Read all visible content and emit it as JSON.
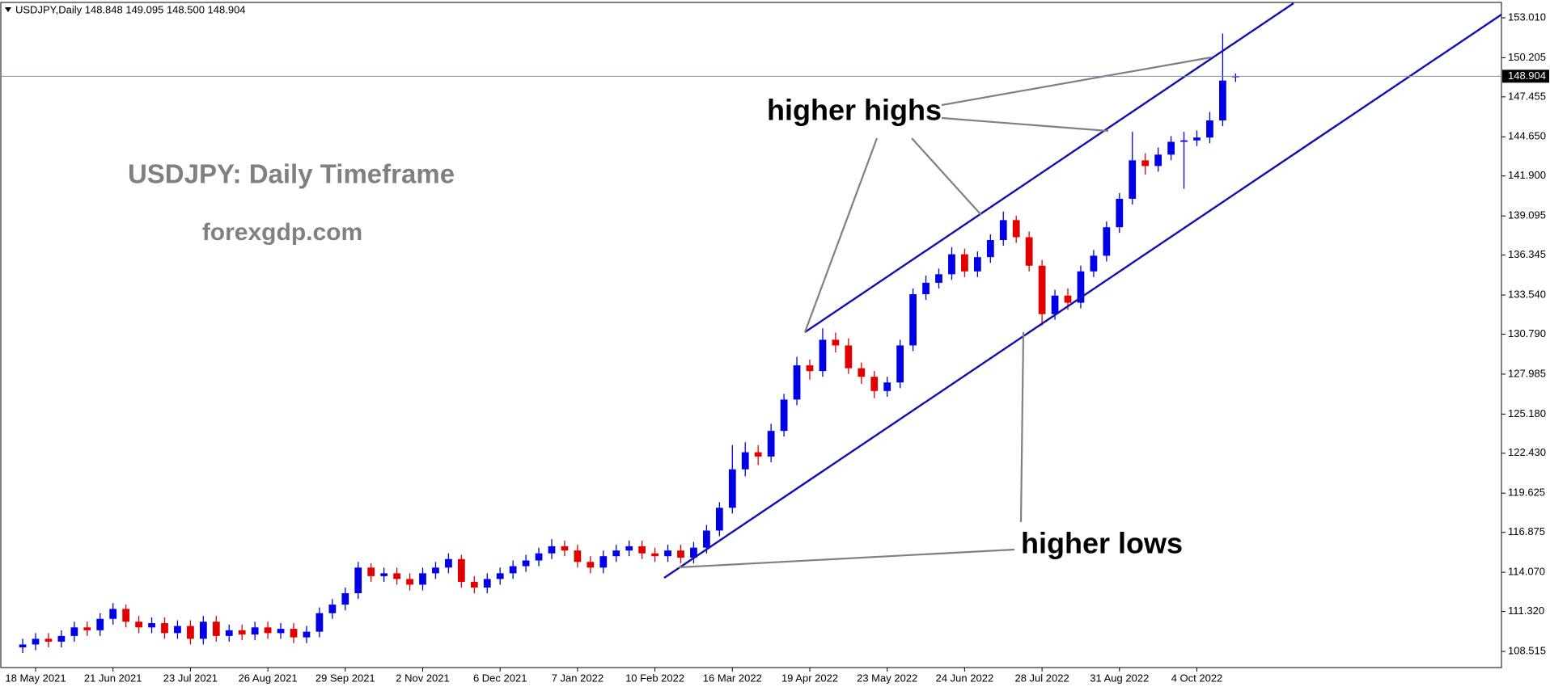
{
  "chart_data": {
    "type": "candlestick",
    "title": "USDJPY,Daily  148.848 149.095 148.500 148.904",
    "annotations": [
      "USDJPY: Daily Timeframe",
      "forexgdp.com",
      "higher highs",
      "higher lows"
    ],
    "up_color": "#0000e6",
    "down_color": "#e00000",
    "categories": [
      null,
      "18 May 2021",
      null,
      null,
      null,
      null,
      null,
      "21 Jun 2021",
      null,
      null,
      null,
      null,
      null,
      "23 Jul 2021",
      null,
      null,
      null,
      null,
      null,
      "26 Aug 2021",
      null,
      null,
      null,
      null,
      null,
      "29 Sep 2021",
      null,
      null,
      null,
      null,
      null,
      "2 Nov 2021",
      null,
      null,
      null,
      null,
      null,
      "6 Dec 2021",
      null,
      null,
      null,
      null,
      null,
      "7 Jan 2022",
      null,
      null,
      null,
      null,
      null,
      "10 Feb 2022",
      null,
      null,
      null,
      null,
      null,
      "16 Mar 2022",
      null,
      null,
      null,
      null,
      null,
      "19 Apr 2022",
      null,
      null,
      null,
      null,
      null,
      "23 May 2022",
      null,
      null,
      null,
      null,
      null,
      "24 Jun 2022",
      null,
      null,
      null,
      null,
      null,
      "28 Jul 2022",
      null,
      null,
      null,
      null,
      null,
      "31 Aug 2022",
      null,
      null,
      null,
      null,
      null,
      "4 Oct 2022",
      null,
      null,
      null
    ],
    "open": [
      108.8,
      109.0,
      109.4,
      109.2,
      109.6,
      110.2,
      110.0,
      110.8,
      111.5,
      110.6,
      110.2,
      110.5,
      109.8,
      110.3,
      109.4,
      110.6,
      109.6,
      110.0,
      109.7,
      110.2,
      109.8,
      110.1,
      109.5,
      109.9,
      111.2,
      111.8,
      112.6,
      114.4,
      113.8,
      114.0,
      113.6,
      113.2,
      114.0,
      114.4,
      115.0,
      113.4,
      113.0,
      113.6,
      114.0,
      114.5,
      114.9,
      115.4,
      115.9,
      115.6,
      114.8,
      114.4,
      115.2,
      115.6,
      115.9,
      115.4,
      115.2,
      115.6,
      115.1,
      115.8,
      117.0,
      118.6,
      121.3,
      122.5,
      122.2,
      124.0,
      126.2,
      128.6,
      128.2,
      130.4,
      130.0,
      128.4,
      127.8,
      126.8,
      127.4,
      130.0,
      133.6,
      134.4,
      135.0,
      136.4,
      135.2,
      136.2,
      137.4,
      138.8,
      137.6,
      135.6,
      132.2,
      133.5,
      133.0,
      135.2,
      136.3,
      138.3,
      140.3,
      143.0,
      142.6,
      143.4,
      144.3,
      144.4,
      144.6,
      145.8,
      148.848
    ],
    "high": [
      109.4,
      109.8,
      109.8,
      110.0,
      110.6,
      110.6,
      111.2,
      111.9,
      111.8,
      111.0,
      110.9,
      110.9,
      110.7,
      110.7,
      111.0,
      111.0,
      110.4,
      110.4,
      110.6,
      110.6,
      110.5,
      110.5,
      110.3,
      111.6,
      112.2,
      113.0,
      114.8,
      114.7,
      114.4,
      114.4,
      114.0,
      114.4,
      114.8,
      115.4,
      115.3,
      113.8,
      114.0,
      114.4,
      114.9,
      115.3,
      115.8,
      116.4,
      116.3,
      116.0,
      115.2,
      115.6,
      116.0,
      116.3,
      116.3,
      115.8,
      116.0,
      116.0,
      116.2,
      117.4,
      119.0,
      123.0,
      123.2,
      123.0,
      124.5,
      126.6,
      129.2,
      129.0,
      131.2,
      130.9,
      130.5,
      128.8,
      128.2,
      127.8,
      130.4,
      134.0,
      134.9,
      135.4,
      136.9,
      136.8,
      136.6,
      137.8,
      139.4,
      139.1,
      138.0,
      136.0,
      133.9,
      134.0,
      135.6,
      136.7,
      138.7,
      140.7,
      145.0,
      143.5,
      143.9,
      144.7,
      145.0,
      145.1,
      146.4,
      151.9,
      149.095
    ],
    "low": [
      108.4,
      108.6,
      108.8,
      108.8,
      109.2,
      109.6,
      109.6,
      110.4,
      110.2,
      109.8,
      109.8,
      109.4,
      109.4,
      109.0,
      109.0,
      109.2,
      109.2,
      109.3,
      109.3,
      109.4,
      109.4,
      109.1,
      109.1,
      109.5,
      110.8,
      111.4,
      112.2,
      113.4,
      113.4,
      113.2,
      112.8,
      112.8,
      113.6,
      114.0,
      113.0,
      112.6,
      112.6,
      113.2,
      113.6,
      114.1,
      114.5,
      115.0,
      115.2,
      114.4,
      114.0,
      114.0,
      114.8,
      115.2,
      115.0,
      114.8,
      114.8,
      114.7,
      114.7,
      115.4,
      116.6,
      118.2,
      120.8,
      121.6,
      121.8,
      123.6,
      125.8,
      127.6,
      127.8,
      129.5,
      128.0,
      127.3,
      126.3,
      126.4,
      127.0,
      129.6,
      133.2,
      134.0,
      134.6,
      134.8,
      134.8,
      135.8,
      137.0,
      137.2,
      135.2,
      131.4,
      131.8,
      132.5,
      132.6,
      134.8,
      135.9,
      137.9,
      139.9,
      142.0,
      142.2,
      143.0,
      141.0,
      144.0,
      144.2,
      145.4,
      148.5
    ],
    "close": [
      109.0,
      109.4,
      109.2,
      109.6,
      110.2,
      110.0,
      110.8,
      111.5,
      110.6,
      110.2,
      110.5,
      109.8,
      110.3,
      109.4,
      110.6,
      109.6,
      110.0,
      109.7,
      110.2,
      109.8,
      110.1,
      109.5,
      109.9,
      111.2,
      111.8,
      112.6,
      114.4,
      113.8,
      114.0,
      113.6,
      113.2,
      114.0,
      114.4,
      115.0,
      113.4,
      113.0,
      113.6,
      114.0,
      114.5,
      114.9,
      115.4,
      115.9,
      115.6,
      114.8,
      114.4,
      115.2,
      115.6,
      115.9,
      115.4,
      115.2,
      115.6,
      115.1,
      115.8,
      117.0,
      118.6,
      121.3,
      122.5,
      122.2,
      124.0,
      126.2,
      128.6,
      128.2,
      130.4,
      130.0,
      128.4,
      127.8,
      126.8,
      127.4,
      130.0,
      133.6,
      134.4,
      135.0,
      136.4,
      135.2,
      136.2,
      137.4,
      138.8,
      137.6,
      135.6,
      132.2,
      133.5,
      133.0,
      135.2,
      136.3,
      138.3,
      140.3,
      143.0,
      142.6,
      143.4,
      144.3,
      144.4,
      144.6,
      145.8,
      148.6,
      148.904
    ],
    "current_price": 148.904,
    "ylim": [
      107.38,
      154.03
    ],
    "yticks": [
      108.515,
      {
        "value": 111.32,
        "label": "111.320"
      },
      {
        "value": 114.07,
        "label": "114.070"
      },
      116.875,
      119.625,
      {
        "value": 122.43,
        "label": "122.430"
      },
      {
        "value": 125.18,
        "label": "125.180"
      },
      127.985,
      {
        "value": 130.79,
        "label": "130.790"
      },
      {
        "value": 133.54,
        "label": "133.540"
      },
      136.345,
      139.095,
      {
        "value": 141.9,
        "label": "141.900"
      },
      {
        "value": 144.65,
        "label": "144.650"
      },
      147.455,
      150.205,
      {
        "value": 153.01,
        "label": "153.010"
      }
    ]
  }
}
